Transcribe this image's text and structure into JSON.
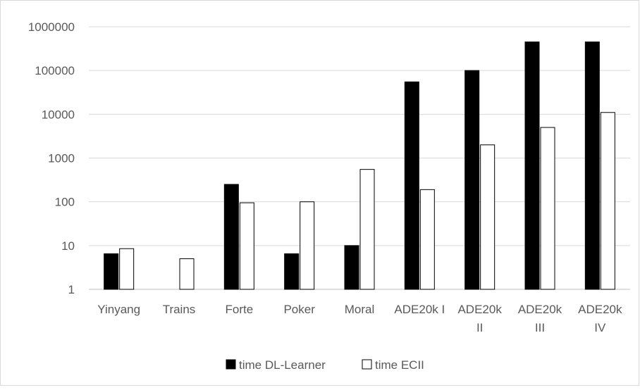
{
  "chart_data": {
    "type": "bar",
    "scale": "log10",
    "ylim": [
      1,
      1000000
    ],
    "yticks": [
      "1",
      "10",
      "100",
      "1000",
      "10000",
      "100000",
      "1000000"
    ],
    "grid": true,
    "legend_position": "bottom",
    "categories": [
      [
        "Yinyang"
      ],
      [
        "Trains"
      ],
      [
        "Forte"
      ],
      [
        "Poker"
      ],
      [
        "Moral"
      ],
      [
        "ADE20k I"
      ],
      [
        "ADE20k",
        "II"
      ],
      [
        "ADE20k",
        "III"
      ],
      [
        "ADE20k",
        "IV"
      ]
    ],
    "series": [
      {
        "name": "time DL-Learner",
        "color": "#000000",
        "values": [
          6.5,
          null,
          250,
          6.5,
          10,
          55000,
          100000,
          450000,
          450000
        ]
      },
      {
        "name": "time ECII",
        "color": "#ffffff",
        "values": [
          8.5,
          5,
          95,
          100,
          550,
          190,
          2000,
          5000,
          11000
        ]
      }
    ]
  }
}
